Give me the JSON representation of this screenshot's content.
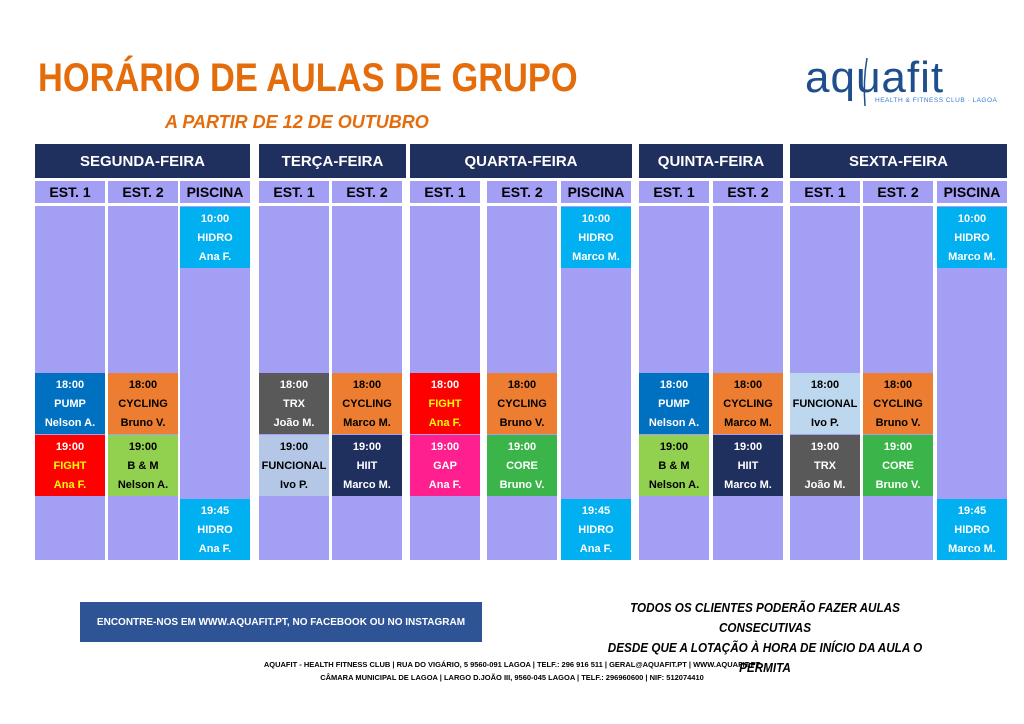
{
  "title": "HORÁRIO DE AULAS DE GRUPO",
  "subtitle": "A PARTIR DE 12 DE OUTUBRO",
  "logo": {
    "word": "aquafit",
    "tagline": "HEALTH & FITNESS CLUB · LAGOA"
  },
  "days": [
    {
      "name": "SEGUNDA-FEIRA",
      "studios": [
        "EST. 1",
        "EST. 2",
        "PISCINA"
      ]
    },
    {
      "name": "TERÇA-FEIRA",
      "studios": [
        "EST. 1",
        "EST. 2"
      ]
    },
    {
      "name": "QUARTA-FEIRA",
      "studios": [
        "EST. 1",
        "EST. 2",
        "PISCINA"
      ]
    },
    {
      "name": "QUINTA-FEIRA",
      "studios": [
        "EST. 1",
        "EST. 2"
      ]
    },
    {
      "name": "SEXTA-FEIRA",
      "studios": [
        "EST. 1",
        "EST. 2",
        "PISCINA"
      ]
    }
  ],
  "classes": [
    {
      "day": 0,
      "studio": "PISCINA",
      "time": "10:00",
      "name": "HIDRO",
      "instructor": "Ana F.",
      "color": "#00b0f0"
    },
    {
      "day": 0,
      "studio": "EST. 1",
      "time": "18:00",
      "name": "PUMP",
      "instructor": "Nelson A.",
      "color": "#0070c0"
    },
    {
      "day": 0,
      "studio": "EST. 2",
      "time": "18:00",
      "name": "CYCLING",
      "instructor": "Bruno V.",
      "color": "#ed7d31"
    },
    {
      "day": 0,
      "studio": "EST. 1",
      "time": "19:00",
      "name": "FIGHT",
      "instructor": "Ana F.",
      "color": "#ff0000"
    },
    {
      "day": 0,
      "studio": "EST. 2",
      "time": "19:00",
      "name": "B & M",
      "instructor": "Nelson A.",
      "color": "#92d050"
    },
    {
      "day": 0,
      "studio": "PISCINA",
      "time": "19:45",
      "name": "HIDRO",
      "instructor": "Ana F.",
      "color": "#00b0f0"
    },
    {
      "day": 1,
      "studio": "EST. 1",
      "time": "18:00",
      "name": "TRX",
      "instructor": "João M.",
      "color": "#595959"
    },
    {
      "day": 1,
      "studio": "EST. 2",
      "time": "18:00",
      "name": "CYCLING",
      "instructor": "Marco M.",
      "color": "#ed7d31"
    },
    {
      "day": 1,
      "studio": "EST. 1",
      "time": "19:00",
      "name": "FUNCIONAL",
      "instructor": "Ivo P.",
      "color": "#b4c7e7"
    },
    {
      "day": 1,
      "studio": "EST. 2",
      "time": "19:00",
      "name": "HIIT",
      "instructor": "Marco M.",
      "color": "#1f2f5e"
    },
    {
      "day": 2,
      "studio": "PISCINA",
      "time": "10:00",
      "name": "HIDRO",
      "instructor": "Marco M.",
      "color": "#00b0f0"
    },
    {
      "day": 2,
      "studio": "EST. 1",
      "time": "18:00",
      "name": "FIGHT",
      "instructor": "Ana F.",
      "color": "#ff0000"
    },
    {
      "day": 2,
      "studio": "EST. 2",
      "time": "18:00",
      "name": "CYCLING",
      "instructor": "Bruno V.",
      "color": "#ed7d31"
    },
    {
      "day": 2,
      "studio": "EST. 1",
      "time": "19:00",
      "name": "GAP",
      "instructor": "Ana F.",
      "color": "#ff1f8f"
    },
    {
      "day": 2,
      "studio": "EST. 2",
      "time": "19:00",
      "name": "CORE",
      "instructor": "Bruno V.",
      "color": "#3bb54a"
    },
    {
      "day": 2,
      "studio": "PISCINA",
      "time": "19:45",
      "name": "HIDRO",
      "instructor": "Ana F.",
      "color": "#00b0f0"
    },
    {
      "day": 3,
      "studio": "EST. 1",
      "time": "18:00",
      "name": "PUMP",
      "instructor": "Nelson A.",
      "color": "#0070c0"
    },
    {
      "day": 3,
      "studio": "EST. 2",
      "time": "18:00",
      "name": "CYCLING",
      "instructor": "Marco M.",
      "color": "#ed7d31"
    },
    {
      "day": 3,
      "studio": "EST. 1",
      "time": "19:00",
      "name": "B & M",
      "instructor": "Nelson A.",
      "color": "#92d050"
    },
    {
      "day": 3,
      "studio": "EST. 2",
      "time": "19:00",
      "name": "HIIT",
      "instructor": "Marco M.",
      "color": "#1f2f5e"
    },
    {
      "day": 4,
      "studio": "PISCINA",
      "time": "10:00",
      "name": "HIDRO",
      "instructor": "Marco M.",
      "color": "#00b0f0"
    },
    {
      "day": 4,
      "studio": "EST. 1",
      "time": "18:00",
      "name": "FUNCIONAL",
      "instructor": "Ivo P.",
      "color": "#bdd7ee"
    },
    {
      "day": 4,
      "studio": "EST. 2",
      "time": "18:00",
      "name": "CYCLING",
      "instructor": "Bruno V.",
      "color": "#ed7d31"
    },
    {
      "day": 4,
      "studio": "EST. 1",
      "time": "19:00",
      "name": "TRX",
      "instructor": "João M.",
      "color": "#595959"
    },
    {
      "day": 4,
      "studio": "EST. 2",
      "time": "19:00",
      "name": "CORE",
      "instructor": "Bruno V.",
      "color": "#3bb54a"
    },
    {
      "day": 4,
      "studio": "PISCINA",
      "time": "19:45",
      "name": "HIDRO",
      "instructor": "Marco M.",
      "color": "#00b0f0"
    }
  ],
  "banner": "ENCONTRE-NOS EM WWW.AQUAFIT.PT, NO FACEBOOK OU NO INSTAGRAM",
  "notice": [
    "TODOS OS CLIENTES PODERÃO FAZER AULAS CONSECUTIVAS",
    "DESDE QUE A LOTAÇÃO À HORA DE INÍCIO DA AULA O PERMITA"
  ],
  "footer": [
    "AQUAFIT - HEALTH FITNESS CLUB | RUA DO VIGÁRIO, 5 9560-091 LAGOA | TELF.: 296 916 511 | GERAL@AQUAFIT.PT | WWW.AQUAFIT.PT",
    "CÂMARA MUNICIPAL DE LAGOA | LARGO D.JOÃO III, 9560-045 LAGOA | TELF.: 296960600 | NIF: 512074410"
  ],
  "colors": {
    "header": "#1f2f5e",
    "column": "#a29ff5",
    "title": "#e46c0a",
    "banner": "#2e5496"
  }
}
